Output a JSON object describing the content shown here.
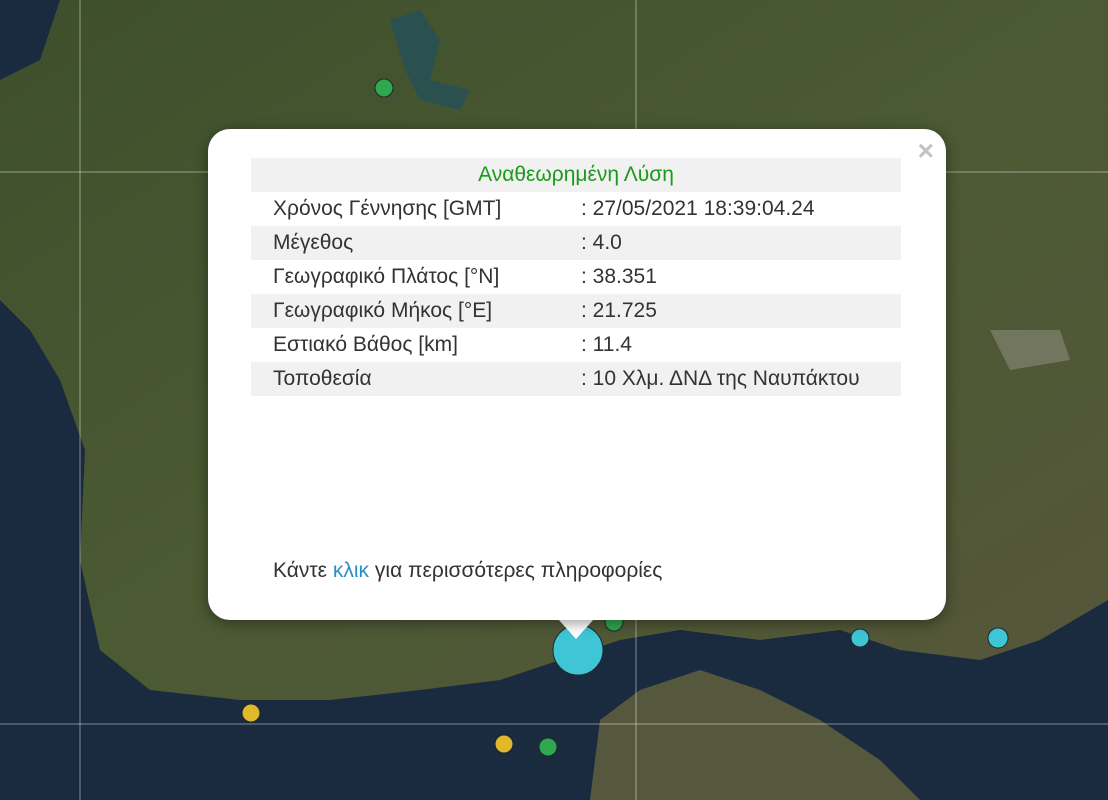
{
  "popup": {
    "title": "Αναθεωρημένη Λύση",
    "close_label": "×",
    "rows": [
      {
        "label": "Χρόνος Γέννησης [GMT]",
        "value": ": 27/05/2021 18:39:04.24"
      },
      {
        "label": "Μέγεθος",
        "value": ": 4.0"
      },
      {
        "label": "Γεωγραφικό Πλάτος [°N]",
        "value": ": 38.351"
      },
      {
        "label": "Γεωγραφικό Μήκος [°E]",
        "value": ": 21.725"
      },
      {
        "label": "Εστιακό Βάθος [km]",
        "value": ": 11.4"
      },
      {
        "label": "Τοποθεσία",
        "value": ": 10 Χλμ. ΔΝΔ της Ναυπάκτου"
      }
    ],
    "footer_prefix": "Κάντε ",
    "footer_link": "κλικ",
    "footer_suffix": " για περισσότερες πληροφορίες"
  },
  "colors": {
    "title": "#1a9a1a",
    "link": "#2a8fc7",
    "marker_cyan": "#3fc6d6",
    "marker_green": "#2fa84f",
    "marker_yellow": "#e0b92a"
  },
  "markers": [
    {
      "color": "green"
    },
    {
      "color": "cyan",
      "selected": true
    },
    {
      "color": "green"
    },
    {
      "color": "cyan"
    },
    {
      "color": "cyan"
    },
    {
      "color": "yellow"
    },
    {
      "color": "yellow"
    },
    {
      "color": "green"
    }
  ]
}
